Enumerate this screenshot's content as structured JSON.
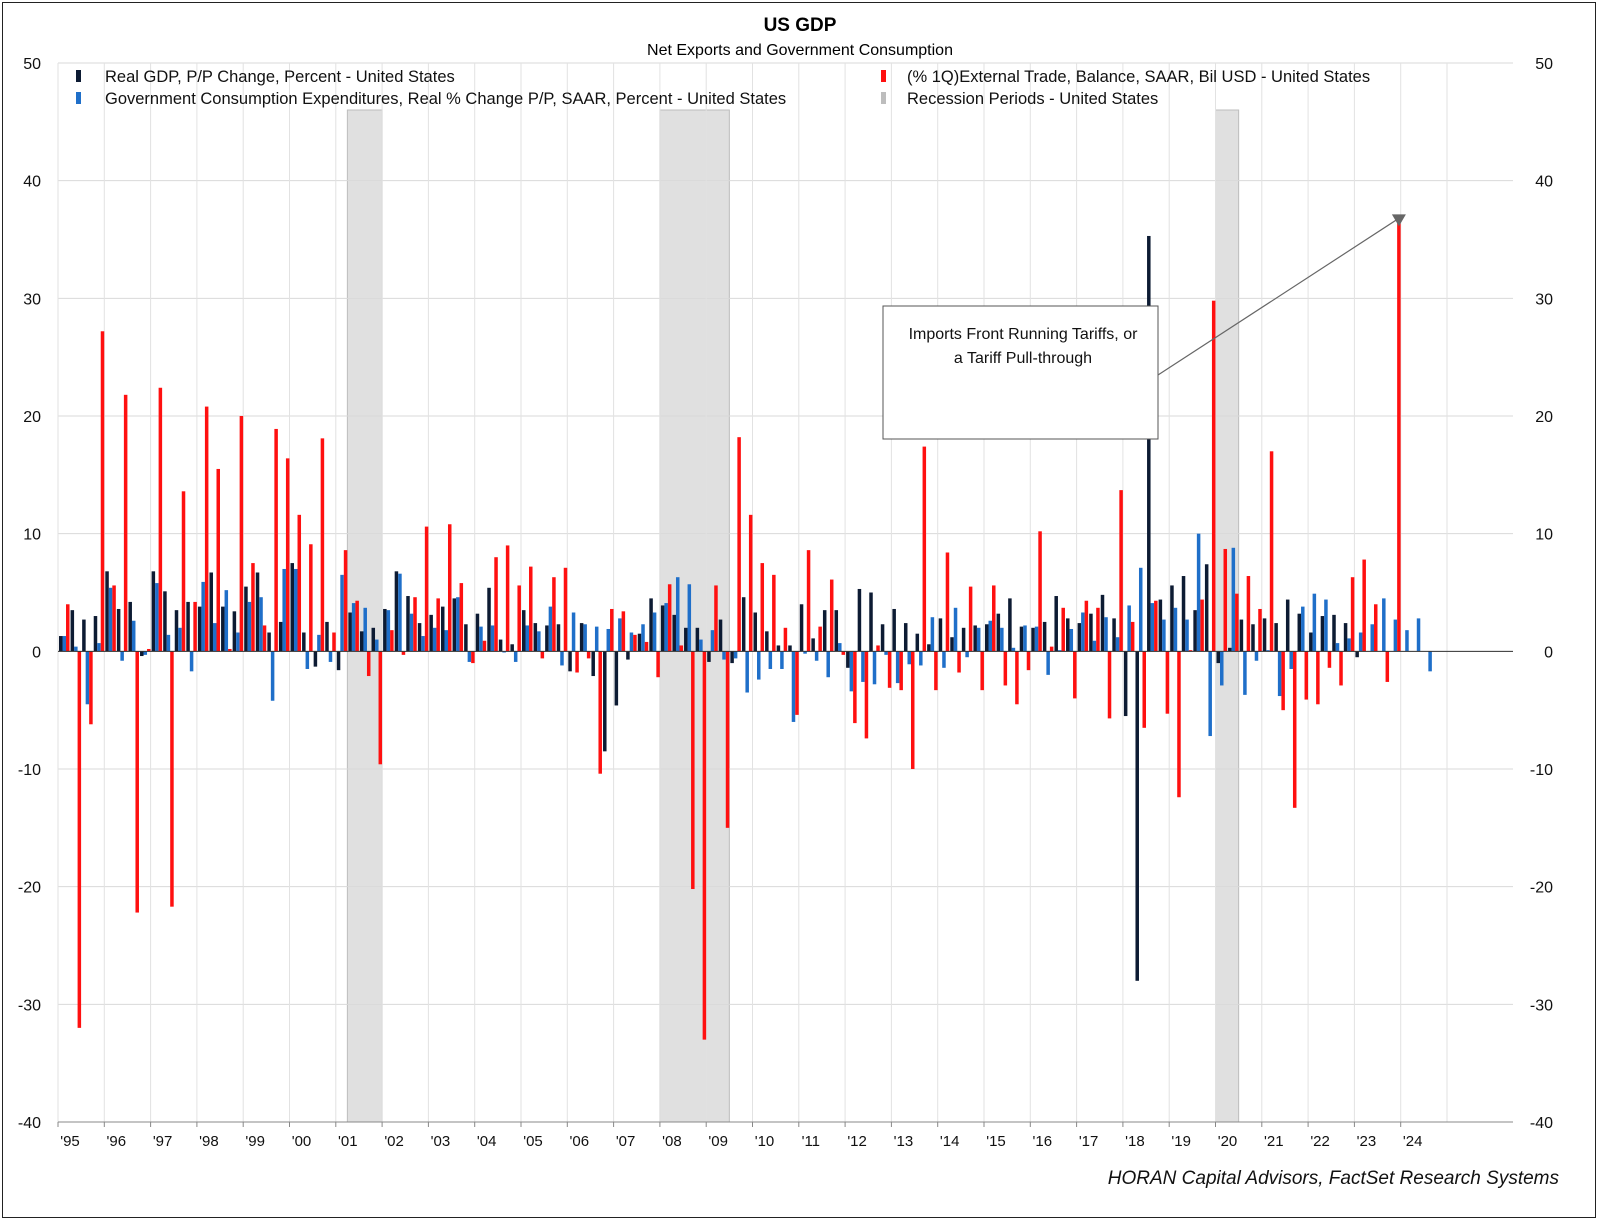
{
  "chart_data": {
    "type": "bar",
    "title": "US GDP",
    "subtitle": "Net Exports and Government Consumption",
    "source": "HORAN Capital Advisors, FactSet Research Systems",
    "ylim": [
      -40,
      50
    ],
    "yticks": [
      50,
      40,
      30,
      20,
      10,
      0,
      -10,
      -20,
      -30,
      -40
    ],
    "grid": true,
    "legend_position": "top",
    "start_year": 1995,
    "x_labels": [
      "'95",
      "'96",
      "'97",
      "'98",
      "'99",
      "'00",
      "'01",
      "'02",
      "'03",
      "'04",
      "'05",
      "'06",
      "'07",
      "'08",
      "'09",
      "'10",
      "'11",
      "'12",
      "'13",
      "'14",
      "'15",
      "'16",
      "'17",
      "'18",
      "'19",
      "'20",
      "'21",
      "'22",
      "'23",
      "'24"
    ],
    "recessions": [
      {
        "start": "2001 Q2",
        "end": "2001 Q4"
      },
      {
        "start": "2008 Q1",
        "end": "2009 Q2"
      },
      {
        "start": "2020 Q1",
        "end": "2020 Q2"
      }
    ],
    "series": [
      {
        "name": "Real GDP, P/P Change, Percent - United States",
        "color": "#0d1b33",
        "values": [
          1.3,
          3.5,
          2.7,
          3.0,
          6.8,
          3.6,
          4.2,
          -0.4,
          6.8,
          5.1,
          3.5,
          4.2,
          3.8,
          6.7,
          3.8,
          3.4,
          5.5,
          6.7,
          1.6,
          2.5,
          7.5,
          1.6,
          -1.3,
          2.5,
          -1.6,
          3.3,
          1.7,
          2.0,
          3.6,
          6.8,
          4.7,
          2.4,
          3.1,
          3.8,
          4.5,
          2.3,
          3.2,
          5.4,
          1.0,
          0.6,
          3.5,
          2.4,
          2.2,
          2.3,
          -1.7,
          2.4,
          -2.1,
          -8.5,
          -4.6,
          -0.7,
          1.5,
          4.5,
          3.9,
          3.1,
          2.0,
          2.0,
          -0.9,
          2.7,
          -1.0,
          4.6,
          3.3,
          1.7,
          0.5,
          0.5,
          4.0,
          1.1,
          3.5,
          3.5,
          -1.4,
          5.3,
          5.0,
          2.3,
          3.6,
          2.4,
          1.5,
          0.6,
          2.8,
          1.2,
          2.0,
          2.2,
          2.3,
          3.2,
          4.5,
          2.1,
          2.0,
          2.5,
          4.7,
          2.8,
          2.4,
          3.2,
          4.8,
          2.8,
          -5.5,
          -28.0,
          35.3,
          4.4,
          5.6,
          6.4,
          3.5,
          7.4,
          -1.0,
          0.3,
          2.7,
          2.3,
          2.8,
          2.4,
          4.4,
          3.2,
          1.6,
          3.0,
          3.1,
          2.4,
          -0.5
        ],
        "value_note": "approximate quarterly values read from chart"
      },
      {
        "name": "Government Consumption Expenditures, Real % Change P/P, SAAR, Percent - United States",
        "color": "#1f6fc9",
        "values": [
          1.3,
          0.4,
          -4.5,
          0.7,
          5.4,
          -0.8,
          2.6,
          -0.3,
          5.8,
          1.4,
          2.0,
          -1.7,
          5.9,
          2.4,
          5.2,
          1.6,
          4.2,
          4.6,
          -4.2,
          7.0,
          7.0,
          -1.5,
          1.4,
          -0.9,
          6.5,
          4.1,
          3.7,
          1.0,
          3.5,
          6.6,
          3.2,
          1.3,
          2.0,
          1.8,
          4.6,
          -0.9,
          2.1,
          2.2,
          -0.1,
          -0.9,
          2.2,
          1.7,
          3.8,
          -1.2,
          3.3,
          2.3,
          2.1,
          1.9,
          2.8,
          1.6,
          2.3,
          3.3,
          4.1,
          6.3,
          5.7,
          1.0,
          1.8,
          -0.7,
          -0.6,
          -3.5,
          -2.4,
          -1.5,
          -1.5,
          -6.0,
          -0.2,
          -0.8,
          -2.2,
          0.7,
          -3.4,
          -2.6,
          -2.8,
          -0.3,
          -2.7,
          -1.1,
          -1.2,
          2.9,
          -1.4,
          3.7,
          -0.5,
          2.0,
          2.6,
          2.0,
          0.3,
          2.2,
          2.1,
          -2.0,
          0.1,
          1.9,
          3.3,
          0.9,
          2.9,
          1.2,
          3.9,
          7.1,
          4.1,
          2.7,
          3.7,
          2.7,
          10.0,
          -7.2,
          -2.9,
          8.8,
          -3.7,
          -0.8,
          0.1,
          -3.8,
          -1.5,
          3.8,
          4.9,
          4.4,
          0.7,
          1.1,
          1.6,
          2.3,
          4.5,
          2.7,
          1.8,
          2.8,
          -1.7
        ],
        "value_note": "approximate quarterly values read from chart"
      },
      {
        "name": "(% 1Q)External Trade, Balance, SAAR, Bil USD - United States",
        "color": "#ff1010",
        "values": [
          4.0,
          -32.0,
          -6.2,
          27.2,
          5.6,
          21.8,
          -22.2,
          0.2,
          22.4,
          -21.7,
          13.6,
          4.2,
          20.8,
          15.5,
          0.2,
          20.0,
          7.5,
          2.2,
          18.9,
          16.4,
          11.6,
          9.1,
          18.1,
          1.6,
          8.6,
          4.3,
          -2.1,
          -9.6,
          1.8,
          -0.3,
          4.6,
          10.6,
          4.5,
          10.8,
          5.8,
          -1.0,
          0.9,
          8.0,
          9.0,
          5.6,
          7.2,
          -0.6,
          6.3,
          7.1,
          -1.8,
          -0.6,
          -10.4,
          3.6,
          3.4,
          1.4,
          0.8,
          -2.2,
          5.7,
          0.5,
          -20.2,
          -33.0,
          5.6,
          -15.0,
          18.2,
          11.6,
          7.5,
          6.5,
          2.0,
          -5.4,
          8.6,
          2.1,
          6.1,
          -0.3,
          -6.1,
          -7.4,
          0.5,
          -3.1,
          -3.3,
          -10.0,
          17.4,
          -3.3,
          8.4,
          -1.8,
          5.5,
          -3.3,
          5.6,
          -2.9,
          -4.5,
          -1.6,
          10.2,
          0.4,
          3.7,
          -4.0,
          4.3,
          3.7,
          -5.7,
          13.7,
          2.5,
          -6.5,
          4.3,
          -5.3,
          -12.4,
          0.1,
          4.4,
          29.8,
          8.7,
          4.9,
          6.4,
          3.6,
          17.0,
          -5.0,
          -13.3,
          -4.1,
          -4.5,
          -1.4,
          -2.9,
          6.3,
          7.8,
          4.0,
          -2.6,
          36.8
        ],
        "value_note": "approximate quarterly values read from chart"
      },
      {
        "name": "Recession Periods - United States",
        "color": "#bdbdbd"
      }
    ],
    "annotation": {
      "text_lines": [
        "Imports Front Running Tariffs, or",
        "a Tariff Pull-through"
      ],
      "target_value": 36.8
    }
  }
}
